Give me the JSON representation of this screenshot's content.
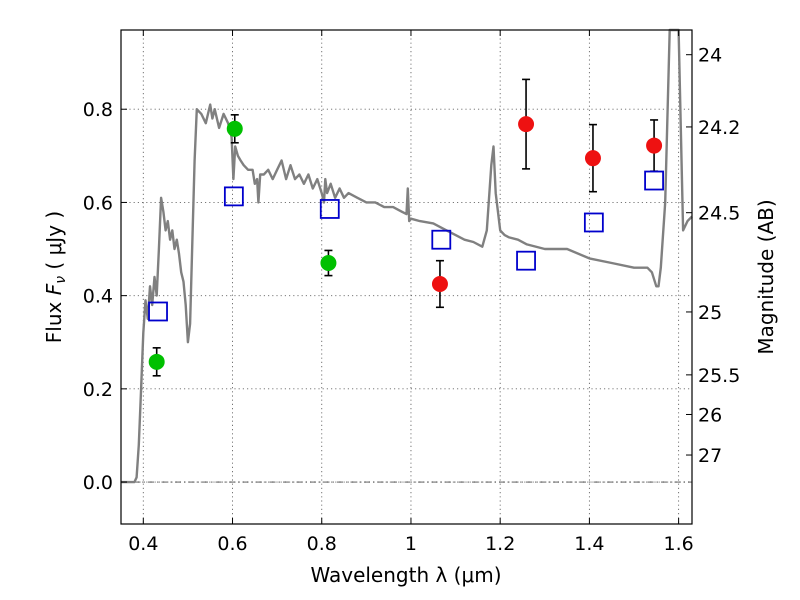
{
  "chart_data": {
    "type": "scatter",
    "xlabel": "Wavelength  λ (μm)",
    "ylabel_prefix": "Flux  ",
    "ylabel_symbol": "F",
    "ylabel_subscript": "ν",
    "ylabel_suffix": "  ( μJy )",
    "y2label": "Magnitude (AB)",
    "xlim": [
      0.35,
      1.63
    ],
    "ylim": [
      -0.09,
      0.97
    ],
    "x_ticks": [
      0.4,
      0.6,
      0.8,
      1.0,
      1.2,
      1.4,
      1.6
    ],
    "x_tick_labels": [
      "0.4",
      "0.6",
      "0.8",
      "1",
      "1.2",
      "1.4",
      "1.6"
    ],
    "y_ticks": [
      0.0,
      0.2,
      0.4,
      0.6,
      0.8
    ],
    "y_tick_labels": [
      "0.0",
      "0.2",
      "0.4",
      "0.6",
      "0.8"
    ],
    "mag_ticks": [
      {
        "label": "24",
        "flux": 0.917
      },
      {
        "label": "24.2",
        "flux": 0.762
      },
      {
        "label": "24.5",
        "flux": 0.578
      },
      {
        "label": "25",
        "flux": 0.365
      },
      {
        "label": "25.5",
        "flux": 0.23
      },
      {
        "label": "26",
        "flux": 0.145
      },
      {
        "label": "27",
        "flux": 0.058
      }
    ],
    "grid": true,
    "colors": {
      "model": "#808080",
      "green": "#00c000",
      "red": "#ee1111",
      "square": "#0000cc",
      "errorbar": "#000000"
    },
    "model_spectrum": {
      "x": [
        0.35,
        0.375,
        0.38,
        0.385,
        0.39,
        0.395,
        0.4,
        0.405,
        0.41,
        0.415,
        0.42,
        0.425,
        0.43,
        0.435,
        0.44,
        0.445,
        0.45,
        0.455,
        0.46,
        0.465,
        0.47,
        0.475,
        0.48,
        0.485,
        0.49,
        0.495,
        0.5,
        0.505,
        0.51,
        0.515,
        0.52,
        0.53,
        0.54,
        0.55,
        0.555,
        0.56,
        0.57,
        0.58,
        0.59,
        0.598,
        0.602,
        0.606,
        0.612,
        0.618,
        0.625,
        0.635,
        0.645,
        0.65,
        0.655,
        0.658,
        0.662,
        0.67,
        0.68,
        0.69,
        0.7,
        0.71,
        0.72,
        0.73,
        0.74,
        0.75,
        0.76,
        0.77,
        0.78,
        0.79,
        0.8,
        0.805,
        0.808,
        0.812,
        0.82,
        0.83,
        0.84,
        0.85,
        0.86,
        0.88,
        0.9,
        0.92,
        0.94,
        0.96,
        0.98,
        0.99,
        0.993,
        0.996,
        1.0,
        1.02,
        1.05,
        1.08,
        1.1,
        1.12,
        1.14,
        1.16,
        1.17,
        1.18,
        1.185,
        1.19,
        1.2,
        1.21,
        1.22,
        1.24,
        1.26,
        1.3,
        1.35,
        1.4,
        1.45,
        1.5,
        1.53,
        1.54,
        1.55,
        1.555,
        1.56,
        1.57,
        1.58,
        1.59,
        1.595,
        1.6,
        1.61,
        1.62,
        1.63
      ],
      "y": [
        0.0,
        0.0,
        0.0,
        0.01,
        0.08,
        0.2,
        0.32,
        0.39,
        0.35,
        0.42,
        0.38,
        0.44,
        0.4,
        0.5,
        0.61,
        0.58,
        0.54,
        0.56,
        0.52,
        0.54,
        0.5,
        0.52,
        0.49,
        0.45,
        0.43,
        0.38,
        0.3,
        0.34,
        0.52,
        0.69,
        0.8,
        0.79,
        0.77,
        0.81,
        0.78,
        0.8,
        0.76,
        0.79,
        0.77,
        0.74,
        0.65,
        0.72,
        0.7,
        0.69,
        0.68,
        0.67,
        0.67,
        0.64,
        0.65,
        0.6,
        0.66,
        0.66,
        0.67,
        0.65,
        0.67,
        0.69,
        0.65,
        0.68,
        0.65,
        0.66,
        0.64,
        0.66,
        0.63,
        0.65,
        0.62,
        0.6,
        0.65,
        0.62,
        0.64,
        0.61,
        0.63,
        0.61,
        0.62,
        0.61,
        0.6,
        0.6,
        0.59,
        0.59,
        0.58,
        0.575,
        0.63,
        0.56,
        0.565,
        0.56,
        0.555,
        0.54,
        0.53,
        0.52,
        0.515,
        0.505,
        0.54,
        0.68,
        0.72,
        0.62,
        0.54,
        0.53,
        0.525,
        0.52,
        0.51,
        0.5,
        0.5,
        0.48,
        0.47,
        0.46,
        0.46,
        0.45,
        0.42,
        0.42,
        0.46,
        0.6,
        1.0,
        1.0,
        1.0,
        1.0,
        0.54,
        0.56,
        0.57
      ]
    },
    "series": [
      {
        "name": "green-points",
        "marker": "circle",
        "color": "#00c000",
        "x": [
          0.43,
          0.605,
          0.815
        ],
        "y": [
          0.258,
          0.758,
          0.47
        ],
        "err": [
          0.03,
          0.03,
          0.027
        ]
      },
      {
        "name": "red-points",
        "marker": "circle",
        "color": "#ee1111",
        "x": [
          1.065,
          1.258,
          1.408,
          1.545
        ],
        "y": [
          0.425,
          0.768,
          0.695,
          0.722
        ],
        "err": [
          0.05,
          0.096,
          0.072,
          0.055
        ]
      },
      {
        "name": "model-squares",
        "marker": "square",
        "color": "#0000cc",
        "x": [
          0.433,
          0.603,
          0.818,
          1.068,
          1.258,
          1.41,
          1.545
        ],
        "y": [
          0.366,
          0.613,
          0.586,
          0.52,
          0.475,
          0.557,
          0.647
        ]
      }
    ]
  }
}
